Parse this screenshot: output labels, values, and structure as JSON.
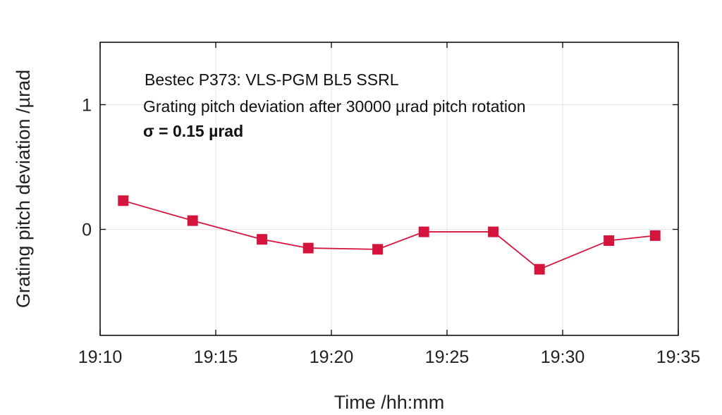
{
  "chart_data": {
    "type": "line",
    "xlabel": "Time /hh:mm",
    "ylabel": "Grating pitch deviation /µrad",
    "xlim": [
      "19:10",
      "19:35"
    ],
    "ylim": [
      -0.85,
      1.5
    ],
    "x_ticks": [
      "19:10",
      "19:15",
      "19:20",
      "19:25",
      "19:30",
      "19:35"
    ],
    "y_ticks": [
      {
        "value": 0,
        "label": "0"
      },
      {
        "value": 1,
        "label": "1"
      }
    ],
    "grid": true,
    "annotations": [
      "Bestec P373: VLS-PGM BL5 SSRL",
      "Grating pitch deviation after 30000 µrad pitch rotation",
      "σ = 0.15 µrad"
    ],
    "series": [
      {
        "color": "#d4143c",
        "marker": "square",
        "x": [
          "19:11",
          "19:14",
          "19:17",
          "19:19",
          "19:22",
          "19:24",
          "19:27",
          "19:29",
          "19:32",
          "19:34"
        ],
        "y": [
          0.23,
          0.07,
          -0.08,
          -0.15,
          -0.16,
          -0.02,
          -0.02,
          -0.32,
          -0.09,
          -0.05
        ]
      }
    ]
  }
}
